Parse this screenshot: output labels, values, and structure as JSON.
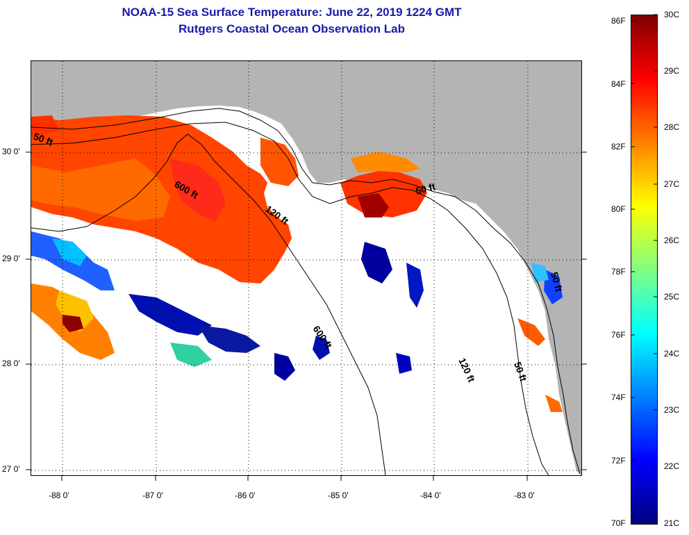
{
  "title": {
    "line1": "NOAA-15 Sea Surface Temperature:  June 22, 2019 1224 GMT",
    "line2": "Rutgers Coastal Ocean Observation Lab"
  },
  "map": {
    "land_color": "#b4b4b4",
    "water_color": "#ffffff",
    "lat_labels": [
      "30 0'",
      "29 0'",
      "28 0'",
      "27 0'"
    ],
    "lon_labels": [
      "-88 0'",
      "-87 0'",
      "-86 0'",
      "-85 0'",
      "-84 0'",
      "-83 0'"
    ],
    "contour_labels": [
      "50 ft",
      "600 ft",
      "120 ft",
      "50 ft",
      "600 ft",
      "120 ft",
      "50 ft",
      "50 ft"
    ]
  },
  "colorbar": {
    "fahrenheit_labels": [
      "86F",
      "84F",
      "82F",
      "80F",
      "78F",
      "76F",
      "74F",
      "72F",
      "70F"
    ],
    "celsius_labels": [
      "30C",
      "29C",
      "28C",
      "27C",
      "26C",
      "25C",
      "24C",
      "23C",
      "22C",
      "21C"
    ],
    "colors": [
      "#000080",
      "#0000ff",
      "#0080ff",
      "#00ffff",
      "#80ff80",
      "#ffff00",
      "#ff8000",
      "#ff0000",
      "#800000"
    ]
  }
}
